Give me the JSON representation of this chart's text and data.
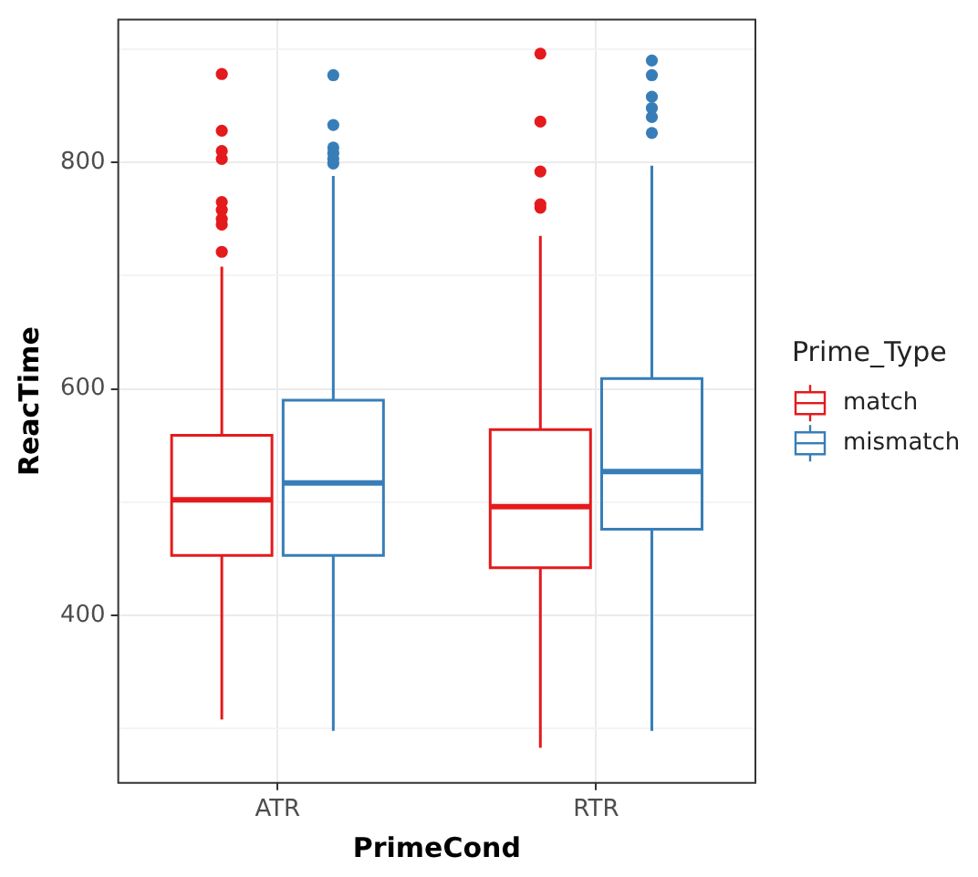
{
  "chart_data": {
    "type": "box",
    "xlabel": "PrimeCond",
    "ylabel": "ReacTime",
    "legend_title": "Prime_Type",
    "categories": [
      "ATR",
      "RTR"
    ],
    "ylim": [
      252,
      926
    ],
    "yticks": [
      {
        "value": 300,
        "label": null
      },
      400,
      {
        "value": 500,
        "label": null
      },
      600,
      {
        "value": 700,
        "label": null
      },
      800,
      {
        "value": 900,
        "label": null
      }
    ],
    "grid": true,
    "legend": "right",
    "series": [
      {
        "name": "match",
        "color": "#e41a1c",
        "boxes": [
          {
            "low": 308,
            "q1": 453,
            "median": 502,
            "q3": 559,
            "high": 708,
            "outliers": [
              721,
              745,
              750,
              758,
              765,
              803,
              810,
              828,
              878
            ]
          },
          {
            "low": 283,
            "q1": 442,
            "median": 496,
            "q3": 564,
            "high": 735,
            "outliers": [
              760,
              763,
              792,
              836,
              896
            ]
          }
        ]
      },
      {
        "name": "mismatch",
        "color": "#377eb8",
        "boxes": [
          {
            "low": 298,
            "q1": 453,
            "median": 517,
            "q3": 590,
            "high": 788,
            "outliers": [
              799,
              803,
              808,
              813,
              833,
              877
            ]
          },
          {
            "low": 298,
            "q1": 476,
            "median": 527,
            "q3": 609,
            "high": 797,
            "outliers": [
              826,
              840,
              848,
              858,
              877,
              890
            ]
          }
        ]
      }
    ]
  }
}
